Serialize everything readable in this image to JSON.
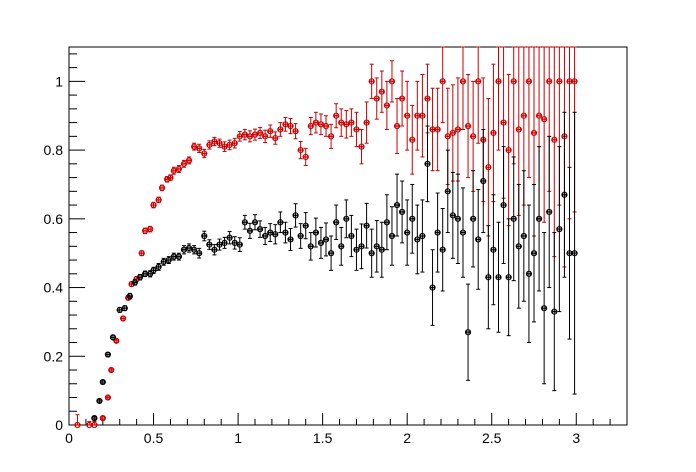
{
  "chart_data": {
    "type": "scatter",
    "title": "",
    "xlabel": "",
    "ylabel": "",
    "xlim": [
      0,
      3.3
    ],
    "ylim": [
      0,
      1.1
    ],
    "x_ticks": [
      0,
      0.5,
      1,
      1.5,
      2,
      2.5,
      3
    ],
    "x_tick_labels": [
      "0",
      "0.5",
      "1",
      "1.5",
      "2",
      "2.5",
      "3"
    ],
    "y_ticks": [
      0,
      0.2,
      0.4,
      0.6,
      0.8,
      1
    ],
    "y_tick_labels": [
      "0",
      "0.2",
      "0.4",
      "0.6",
      "0.8",
      "1"
    ],
    "grid": false,
    "legend": "none",
    "x_half_width": 0.01,
    "series": [
      {
        "color": "#cc0000",
        "points": [
          [
            0.05,
            0.0,
            0.03
          ],
          [
            0.12,
            0.0,
            0.01
          ],
          [
            0.15,
            0.0,
            0.01
          ],
          [
            0.2,
            0.02,
            0.005
          ],
          [
            0.23,
            0.08,
            0.005
          ],
          [
            0.25,
            0.16,
            0.005
          ],
          [
            0.28,
            0.245,
            0.005
          ],
          [
            0.32,
            0.31,
            0.006
          ],
          [
            0.35,
            0.37,
            0.006
          ],
          [
            0.37,
            0.41,
            0.007
          ],
          [
            0.4,
            0.425,
            0.007
          ],
          [
            0.43,
            0.5,
            0.007
          ],
          [
            0.45,
            0.565,
            0.008
          ],
          [
            0.48,
            0.57,
            0.008
          ],
          [
            0.5,
            0.64,
            0.008
          ],
          [
            0.53,
            0.655,
            0.008
          ],
          [
            0.55,
            0.69,
            0.008
          ],
          [
            0.58,
            0.715,
            0.008
          ],
          [
            0.6,
            0.72,
            0.008
          ],
          [
            0.62,
            0.74,
            0.01
          ],
          [
            0.65,
            0.745,
            0.01
          ],
          [
            0.68,
            0.76,
            0.01
          ],
          [
            0.71,
            0.77,
            0.01
          ],
          [
            0.74,
            0.81,
            0.01
          ],
          [
            0.77,
            0.805,
            0.012
          ],
          [
            0.8,
            0.79,
            0.012
          ],
          [
            0.83,
            0.815,
            0.012
          ],
          [
            0.86,
            0.825,
            0.012
          ],
          [
            0.89,
            0.82,
            0.012
          ],
          [
            0.92,
            0.81,
            0.014
          ],
          [
            0.95,
            0.815,
            0.014
          ],
          [
            0.98,
            0.82,
            0.014
          ],
          [
            1.01,
            0.84,
            0.014
          ],
          [
            1.04,
            0.845,
            0.015
          ],
          [
            1.07,
            0.84,
            0.016
          ],
          [
            1.1,
            0.845,
            0.016
          ],
          [
            1.13,
            0.85,
            0.016
          ],
          [
            1.16,
            0.84,
            0.018
          ],
          [
            1.19,
            0.855,
            0.018
          ],
          [
            1.22,
            0.835,
            0.018
          ],
          [
            1.25,
            0.86,
            0.02
          ],
          [
            1.28,
            0.875,
            0.02
          ],
          [
            1.31,
            0.87,
            0.022
          ],
          [
            1.34,
            0.855,
            0.022
          ],
          [
            1.37,
            0.8,
            0.025
          ],
          [
            1.4,
            0.78,
            0.025
          ],
          [
            1.43,
            0.87,
            0.025
          ],
          [
            1.46,
            0.88,
            0.03
          ],
          [
            1.49,
            0.875,
            0.03
          ],
          [
            1.52,
            0.87,
            0.03
          ],
          [
            1.55,
            0.84,
            0.035
          ],
          [
            1.58,
            0.9,
            0.035
          ],
          [
            1.61,
            0.88,
            0.04
          ],
          [
            1.64,
            0.875,
            0.04
          ],
          [
            1.67,
            0.88,
            0.04
          ],
          [
            1.7,
            0.86,
            0.05
          ],
          [
            1.73,
            0.81,
            0.05
          ],
          [
            1.76,
            0.88,
            0.06
          ],
          [
            1.79,
            1.0,
            0.05
          ],
          [
            1.82,
            0.95,
            0.06
          ],
          [
            1.85,
            0.97,
            0.06
          ],
          [
            1.88,
            0.93,
            0.07
          ],
          [
            1.91,
            1.0,
            0.06
          ],
          [
            1.94,
            0.87,
            0.08
          ],
          [
            1.97,
            0.95,
            0.08
          ],
          [
            2.0,
            0.9,
            0.1
          ],
          [
            2.03,
            0.83,
            0.1
          ],
          [
            2.06,
            0.9,
            0.1
          ],
          [
            2.09,
            0.9,
            0.12
          ],
          [
            2.12,
            0.95,
            0.1
          ],
          [
            2.15,
            0.86,
            0.12
          ],
          [
            2.18,
            0.86,
            0.12
          ],
          [
            2.21,
            1.0,
            0.12
          ],
          [
            2.24,
            0.84,
            0.14
          ],
          [
            2.27,
            0.85,
            0.14
          ],
          [
            2.3,
            0.86,
            0.15
          ],
          [
            2.33,
            1.0,
            0.14
          ],
          [
            2.36,
            0.87,
            0.15
          ],
          [
            2.39,
            0.84,
            0.16
          ],
          [
            2.42,
            1.0,
            0.18
          ],
          [
            2.45,
            0.83,
            0.18
          ],
          [
            2.48,
            0.75,
            0.2
          ],
          [
            2.51,
            0.85,
            0.2
          ],
          [
            2.54,
            1.0,
            0.2
          ],
          [
            2.57,
            0.88,
            0.22
          ],
          [
            2.6,
            0.8,
            0.22
          ],
          [
            2.63,
            1.0,
            0.24
          ],
          [
            2.66,
            0.86,
            0.25
          ],
          [
            2.69,
            0.9,
            0.26
          ],
          [
            2.72,
            1.0,
            0.28
          ],
          [
            2.75,
            0.85,
            0.3
          ],
          [
            2.78,
            0.9,
            0.3
          ],
          [
            2.81,
            0.89,
            0.3
          ],
          [
            2.84,
            1.0,
            0.32
          ],
          [
            2.87,
            0.83,
            0.34
          ],
          [
            2.9,
            1.0,
            0.36
          ],
          [
            2.93,
            0.84,
            0.38
          ],
          [
            2.96,
            1.0,
            0.4
          ],
          [
            2.99,
            1.0,
            0.38
          ]
        ]
      },
      {
        "color": "#000000",
        "points": [
          [
            0.15,
            0.02,
            0.005
          ],
          [
            0.18,
            0.07,
            0.005
          ],
          [
            0.2,
            0.125,
            0.005
          ],
          [
            0.23,
            0.205,
            0.006
          ],
          [
            0.26,
            0.255,
            0.006
          ],
          [
            0.3,
            0.335,
            0.007
          ],
          [
            0.33,
            0.34,
            0.007
          ],
          [
            0.36,
            0.375,
            0.008
          ],
          [
            0.39,
            0.415,
            0.008
          ],
          [
            0.42,
            0.43,
            0.008
          ],
          [
            0.45,
            0.44,
            0.008
          ],
          [
            0.48,
            0.44,
            0.009
          ],
          [
            0.5,
            0.45,
            0.009
          ],
          [
            0.53,
            0.46,
            0.01
          ],
          [
            0.56,
            0.475,
            0.01
          ],
          [
            0.59,
            0.48,
            0.01
          ],
          [
            0.62,
            0.49,
            0.01
          ],
          [
            0.65,
            0.49,
            0.01
          ],
          [
            0.68,
            0.51,
            0.012
          ],
          [
            0.71,
            0.515,
            0.012
          ],
          [
            0.74,
            0.51,
            0.012
          ],
          [
            0.77,
            0.5,
            0.014
          ],
          [
            0.8,
            0.55,
            0.014
          ],
          [
            0.83,
            0.525,
            0.014
          ],
          [
            0.86,
            0.51,
            0.015
          ],
          [
            0.89,
            0.525,
            0.016
          ],
          [
            0.92,
            0.53,
            0.016
          ],
          [
            0.95,
            0.545,
            0.018
          ],
          [
            0.98,
            0.53,
            0.018
          ],
          [
            1.01,
            0.525,
            0.02
          ],
          [
            1.04,
            0.59,
            0.02
          ],
          [
            1.07,
            0.565,
            0.022
          ],
          [
            1.1,
            0.59,
            0.022
          ],
          [
            1.13,
            0.57,
            0.024
          ],
          [
            1.16,
            0.55,
            0.025
          ],
          [
            1.19,
            0.56,
            0.026
          ],
          [
            1.22,
            0.555,
            0.028
          ],
          [
            1.25,
            0.59,
            0.03
          ],
          [
            1.28,
            0.56,
            0.03
          ],
          [
            1.31,
            0.54,
            0.032
          ],
          [
            1.34,
            0.61,
            0.034
          ],
          [
            1.37,
            0.55,
            0.036
          ],
          [
            1.4,
            0.58,
            0.038
          ],
          [
            1.43,
            0.52,
            0.04
          ],
          [
            1.46,
            0.56,
            0.042
          ],
          [
            1.49,
            0.53,
            0.045
          ],
          [
            1.52,
            0.54,
            0.048
          ],
          [
            1.55,
            0.5,
            0.05
          ],
          [
            1.58,
            0.59,
            0.05
          ],
          [
            1.61,
            0.52,
            0.055
          ],
          [
            1.64,
            0.6,
            0.055
          ],
          [
            1.67,
            0.55,
            0.06
          ],
          [
            1.7,
            0.51,
            0.06
          ],
          [
            1.73,
            0.52,
            0.065
          ],
          [
            1.76,
            0.58,
            0.065
          ],
          [
            1.79,
            0.5,
            0.07
          ],
          [
            1.82,
            0.52,
            0.075
          ],
          [
            1.85,
            0.51,
            0.08
          ],
          [
            1.88,
            0.59,
            0.08
          ],
          [
            1.91,
            0.55,
            0.085
          ],
          [
            1.94,
            0.64,
            0.09
          ],
          [
            1.97,
            0.62,
            0.09
          ],
          [
            2.0,
            0.56,
            0.095
          ],
          [
            2.03,
            0.6,
            0.1
          ],
          [
            2.06,
            0.54,
            0.1
          ],
          [
            2.09,
            0.55,
            0.105
          ],
          [
            2.12,
            0.76,
            0.11
          ],
          [
            2.15,
            0.4,
            0.11
          ],
          [
            2.18,
            0.56,
            0.115
          ],
          [
            2.21,
            0.51,
            0.12
          ],
          [
            2.24,
            0.68,
            0.12
          ],
          [
            2.27,
            0.61,
            0.125
          ],
          [
            2.3,
            0.6,
            0.13
          ],
          [
            2.33,
            0.56,
            0.13
          ],
          [
            2.36,
            0.27,
            0.14
          ],
          [
            2.39,
            0.6,
            0.14
          ],
          [
            2.42,
            0.54,
            0.145
          ],
          [
            2.45,
            0.71,
            0.15
          ],
          [
            2.48,
            0.43,
            0.15
          ],
          [
            2.51,
            0.51,
            0.16
          ],
          [
            2.54,
            0.43,
            0.16
          ],
          [
            2.57,
            0.64,
            0.17
          ],
          [
            2.6,
            0.43,
            0.17
          ],
          [
            2.63,
            0.6,
            0.18
          ],
          [
            2.66,
            0.52,
            0.18
          ],
          [
            2.69,
            0.55,
            0.19
          ],
          [
            2.72,
            0.44,
            0.2
          ],
          [
            2.75,
            0.5,
            0.2
          ],
          [
            2.78,
            0.6,
            0.21
          ],
          [
            2.81,
            0.34,
            0.22
          ],
          [
            2.84,
            0.62,
            0.22
          ],
          [
            2.87,
            0.33,
            0.23
          ],
          [
            2.9,
            0.57,
            0.24
          ],
          [
            2.93,
            0.67,
            0.24
          ],
          [
            2.96,
            0.5,
            0.25
          ],
          [
            2.99,
            0.5,
            0.41
          ]
        ]
      }
    ]
  }
}
